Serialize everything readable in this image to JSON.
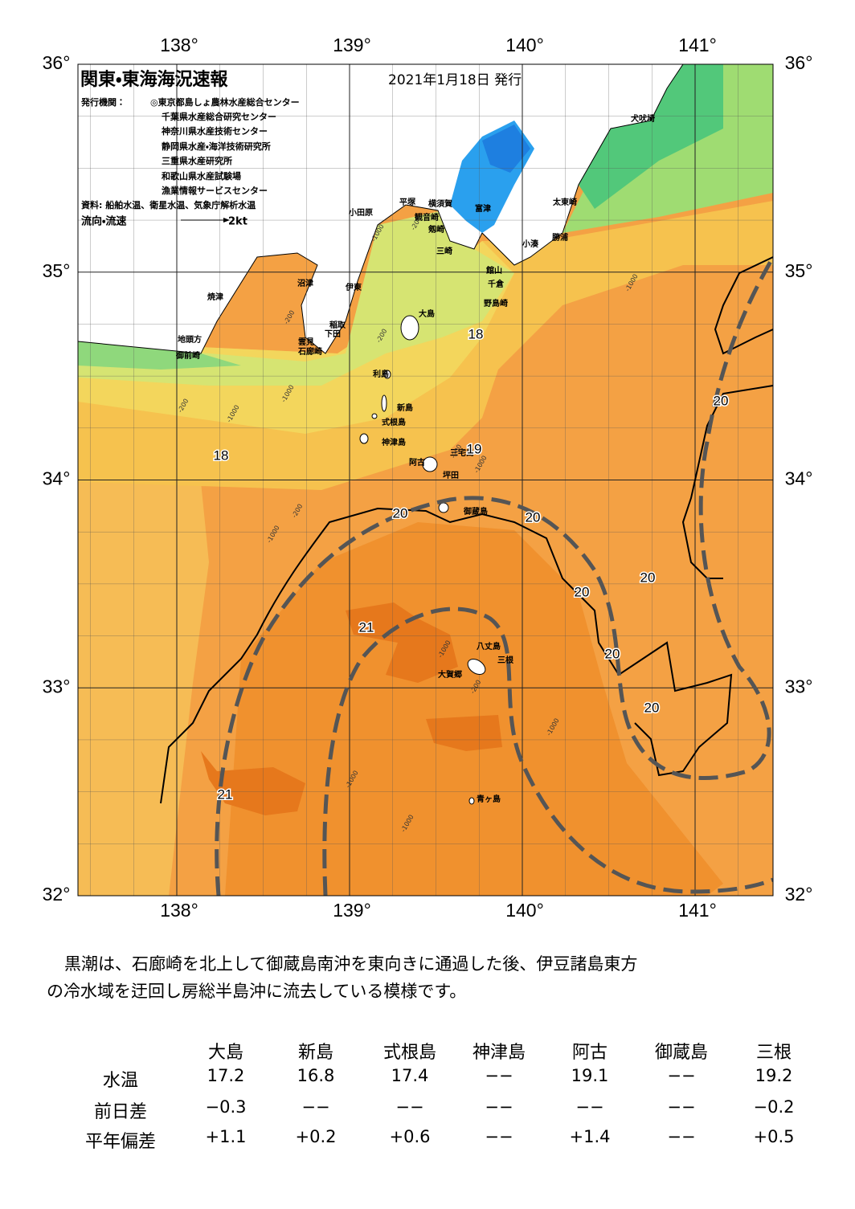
{
  "header": {
    "title": "関東・東海海況速報",
    "date": "2021年1月18日 発行",
    "publisher_label": "発行機関：",
    "publishers": [
      "◎東京都島しょ農林水産総合センター",
      "千葉県水産総合研究センター",
      "神奈川県水産技術センター",
      "静岡県水産・海洋技術研究所",
      "三重県水産研究所",
      "和歌山県水産試験場",
      "漁業情報サービスセンター"
    ],
    "source": "資料: 船舶水温、衛星水温、気象庁解析水温",
    "current_label": "流向・流速",
    "current_scale": "2kt"
  },
  "map": {
    "lon_ticks": [
      {
        "value": 138,
        "label": "138°"
      },
      {
        "value": 139,
        "label": "139°"
      },
      {
        "value": 140,
        "label": "140°"
      },
      {
        "value": 141,
        "label": "141°"
      }
    ],
    "lat_ticks": [
      {
        "value": 36,
        "label": "36°"
      },
      {
        "value": 35,
        "label": "35°"
      },
      {
        "value": 34,
        "label": "34°"
      },
      {
        "value": 33,
        "label": "33°"
      },
      {
        "value": 32,
        "label": "32°"
      }
    ],
    "place_names": [
      "犬吠埼",
      "太東崎",
      "勝浦",
      "小湊",
      "館山",
      "千倉",
      "野島崎",
      "富津",
      "観音崎",
      "剱崎",
      "三崎",
      "横須賀",
      "平塚",
      "小田原",
      "沼津",
      "伊東",
      "大島",
      "稲取",
      "下田",
      "雲見",
      "石廊崎",
      "焼津",
      "地頭方",
      "御前崎",
      "利島",
      "新島",
      "式根島",
      "神津島",
      "三宅島",
      "阿古",
      "坪田",
      "御蔵島",
      "八丈島",
      "三根",
      "大賀郷",
      "青ヶ島"
    ],
    "isotherm_labels": [
      18,
      18,
      19,
      20,
      20,
      20,
      20,
      20,
      21,
      20,
      20,
      21
    ],
    "isobath_labels": [
      -200,
      -1000,
      -200,
      -200,
      -1000,
      -200,
      -1000,
      -200,
      -1000,
      -200,
      -1000,
      -1000,
      -1000,
      -200,
      -1000,
      -1000,
      -1000
    ]
  },
  "description": [
    "黒潮は、石廊崎を北上して御蔵島南沖を東向きに通過した後、伊豆諸島東方",
    "の冷水域を迂回し房総半島沖に流去している模様です。"
  ],
  "table": {
    "columns": [
      "大島",
      "新島",
      "式根島",
      "神津島",
      "阿古",
      "御蔵島",
      "三根"
    ],
    "rows": [
      {
        "label": "水温",
        "cells": [
          "17.2",
          "16.8",
          "17.4",
          "−−",
          "19.1",
          "−−",
          "19.2"
        ]
      },
      {
        "label": "前日差",
        "cells": [
          "−0.3",
          "−−",
          "−−",
          "−−",
          "−−",
          "−−",
          "−0.2"
        ]
      },
      {
        "label": "平年偏差",
        "cells": [
          "+1.1",
          "+0.2",
          "+0.6",
          "−−",
          "+1.4",
          "−−",
          "+0.5"
        ]
      }
    ]
  }
}
